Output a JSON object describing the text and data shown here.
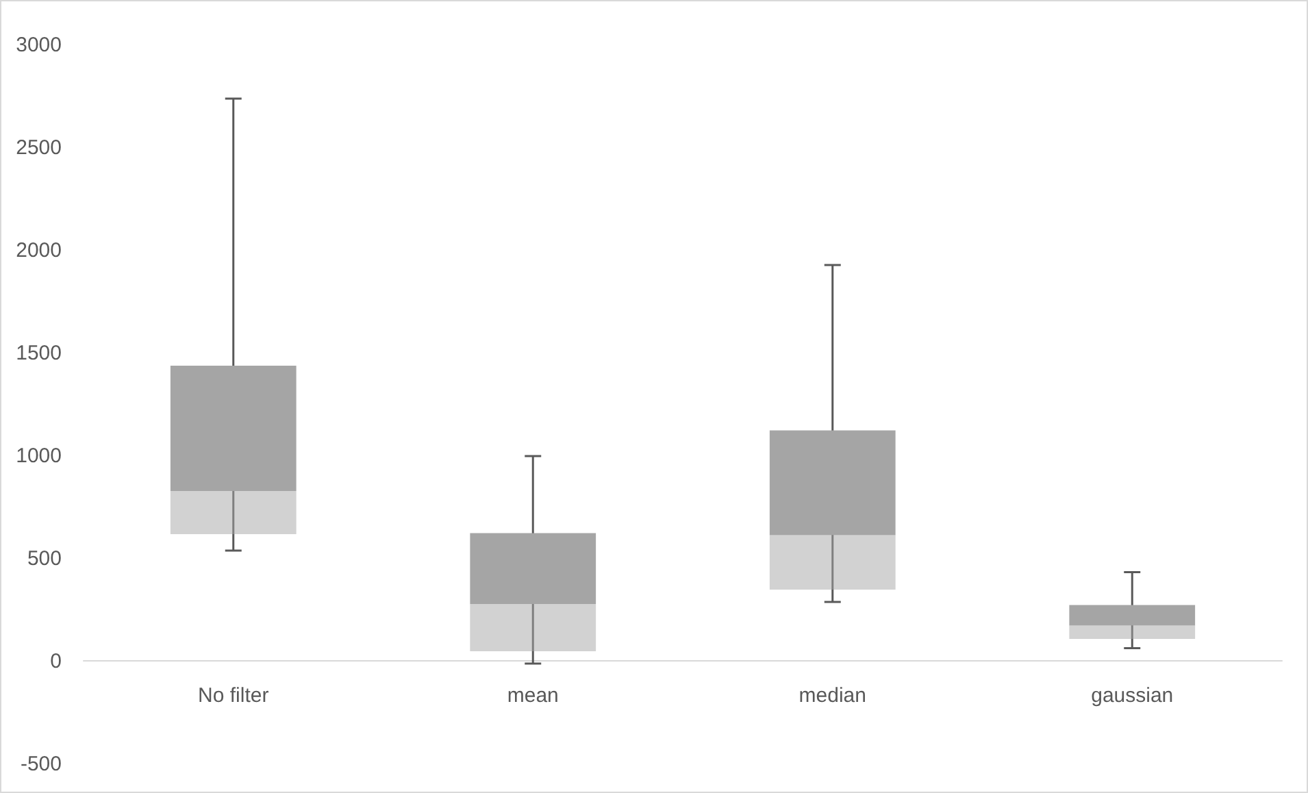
{
  "chart_data": {
    "type": "box",
    "categories": [
      "No filter",
      "mean",
      "median",
      "gaussian"
    ],
    "series": [
      {
        "color": "#a5a5a5",
        "boxes": [
          {
            "low": 540,
            "q1": 620,
            "median": 830,
            "q3": 1440,
            "high": 2740
          },
          {
            "low": -10,
            "q1": 50,
            "median": 280,
            "q3": 625,
            "high": 1000
          },
          {
            "low": 290,
            "q1": 350,
            "median": 615,
            "q3": 1125,
            "high": 1930
          },
          {
            "low": 65,
            "q1": 110,
            "median": 175,
            "q3": 275,
            "high": 435
          }
        ]
      }
    ],
    "ylim": [
      -500,
      3000
    ],
    "yticks": [
      -500,
      0,
      500,
      1000,
      1500,
      2000,
      2500,
      3000
    ],
    "grid": false
  }
}
